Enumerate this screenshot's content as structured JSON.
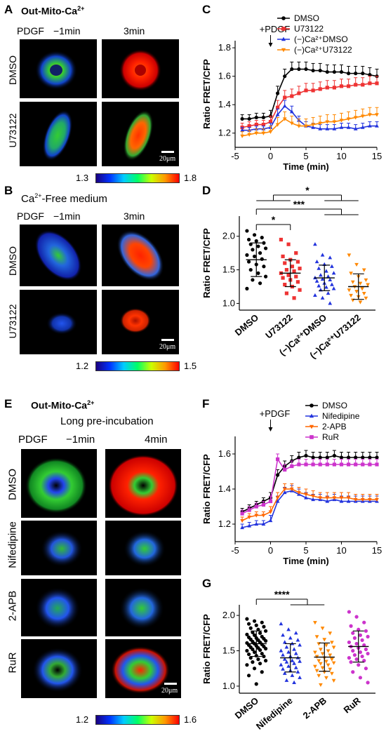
{
  "panels": {
    "A": {
      "label": "A",
      "title_main": "Out-Mito-Ca",
      "title_sup": "2+",
      "col_stim": "PDGF",
      "col1": "−1min",
      "col2": "3min",
      "rows": [
        "DMSO",
        "U73122"
      ],
      "scalebar": "20μm",
      "cbar_min": "1.3",
      "cbar_max": "1.8"
    },
    "B": {
      "label": "B",
      "title_pre": "Ca",
      "title_sup": "2+",
      "title_post": "-Free medium",
      "col_stim": "PDGF",
      "col1": "−1min",
      "col2": "3min",
      "rows": [
        "DMSO",
        "U73122"
      ],
      "scalebar": "20μm",
      "cbar_min": "1.2",
      "cbar_max": "1.5"
    },
    "E": {
      "label": "E",
      "title_main": "Out-Mito-Ca",
      "title_sup": "2+",
      "subtitle": "Long pre-incubation",
      "col_stim": "PDGF",
      "col1": "−1min",
      "col2": "4min",
      "rows": [
        "DMSO",
        "Nifedipine",
        "2-APB",
        "RuR"
      ],
      "scalebar": "20μm",
      "cbar_min": "1.2",
      "cbar_max": "1.6"
    },
    "C": {
      "label": "C"
    },
    "D": {
      "label": "D"
    },
    "F": {
      "label": "F"
    },
    "G": {
      "label": "G"
    }
  },
  "chart_data": [
    {
      "id": "C",
      "type": "line",
      "annotation": "+PDGF",
      "xlabel": "Time (min)",
      "ylabel": "Ratio FRET/CFP",
      "xlim": [
        -5,
        15
      ],
      "ylim": [
        1.1,
        1.85
      ],
      "xticks": [
        -5,
        0,
        5,
        10,
        15
      ],
      "yticks": [
        1.2,
        1.4,
        1.6,
        1.8
      ],
      "x": [
        -4,
        -3,
        -2,
        -1,
        0,
        1,
        2,
        3,
        4,
        5,
        6,
        7,
        8,
        9,
        10,
        11,
        12,
        13,
        14,
        15
      ],
      "legend_position": "top-right",
      "series": [
        {
          "name": "DMSO",
          "color": "#000000",
          "marker": "circle",
          "values": [
            1.3,
            1.3,
            1.31,
            1.31,
            1.32,
            1.48,
            1.6,
            1.65,
            1.65,
            1.65,
            1.64,
            1.64,
            1.63,
            1.63,
            1.63,
            1.62,
            1.62,
            1.62,
            1.61,
            1.6
          ],
          "errors": [
            0.03,
            0.03,
            0.03,
            0.03,
            0.04,
            0.05,
            0.05,
            0.05,
            0.05,
            0.05,
            0.05,
            0.05,
            0.05,
            0.05,
            0.05,
            0.05,
            0.05,
            0.05,
            0.05,
            0.05
          ]
        },
        {
          "name": "U73122",
          "color": "#ee3333",
          "marker": "square",
          "values": [
            1.24,
            1.25,
            1.26,
            1.26,
            1.28,
            1.38,
            1.45,
            1.46,
            1.48,
            1.5,
            1.5,
            1.51,
            1.52,
            1.52,
            1.53,
            1.53,
            1.54,
            1.54,
            1.55,
            1.55
          ],
          "errors": [
            0.03,
            0.03,
            0.03,
            0.03,
            0.04,
            0.05,
            0.05,
            0.05,
            0.05,
            0.05,
            0.05,
            0.05,
            0.05,
            0.05,
            0.05,
            0.05,
            0.05,
            0.05,
            0.05,
            0.05
          ]
        },
        {
          "name": "(−)Ca²⁺DMSO",
          "color": "#2233dd",
          "marker": "triangle",
          "values": [
            1.22,
            1.22,
            1.23,
            1.23,
            1.24,
            1.33,
            1.39,
            1.35,
            1.29,
            1.25,
            1.24,
            1.23,
            1.23,
            1.23,
            1.24,
            1.24,
            1.23,
            1.24,
            1.25,
            1.25
          ],
          "errors": [
            0.02,
            0.02,
            0.02,
            0.02,
            0.03,
            0.04,
            0.04,
            0.04,
            0.03,
            0.03,
            0.03,
            0.03,
            0.03,
            0.03,
            0.03,
            0.03,
            0.03,
            0.03,
            0.03,
            0.03
          ]
        },
        {
          "name": "(−)Ca²⁺U73122",
          "color": "#ff8800",
          "marker": "triangle-down",
          "values": [
            1.18,
            1.19,
            1.2,
            1.2,
            1.21,
            1.26,
            1.3,
            1.27,
            1.25,
            1.25,
            1.26,
            1.27,
            1.28,
            1.28,
            1.29,
            1.3,
            1.31,
            1.32,
            1.33,
            1.33
          ],
          "errors": [
            0.03,
            0.03,
            0.03,
            0.03,
            0.04,
            0.05,
            0.05,
            0.05,
            0.05,
            0.05,
            0.05,
            0.05,
            0.05,
            0.05,
            0.05,
            0.05,
            0.05,
            0.05,
            0.05,
            0.05
          ]
        }
      ]
    },
    {
      "id": "D",
      "type": "scatter",
      "ylabel": "Ratio FRET/CFP",
      "ylim": [
        0.9,
        2.3
      ],
      "yticks": [
        1.0,
        1.5,
        2.0
      ],
      "categories": [
        "DMSO",
        "U73122",
        "(−)Ca²⁺DMSO",
        "(−)Ca²⁺U73122"
      ],
      "groups": [
        {
          "color": "#000000",
          "marker": "circle",
          "mean": 1.65,
          "sd": 0.25,
          "points": [
            2.08,
            2.02,
            1.98,
            1.95,
            1.93,
            1.9,
            1.88,
            1.85,
            1.82,
            1.8,
            1.75,
            1.72,
            1.7,
            1.66,
            1.62,
            1.58,
            1.55,
            1.5,
            1.45,
            1.4,
            1.35,
            1.3,
            1.22
          ]
        },
        {
          "color": "#ee3333",
          "marker": "square",
          "mean": 1.45,
          "sd": 0.2,
          "points": [
            1.95,
            1.88,
            1.75,
            1.7,
            1.65,
            1.62,
            1.6,
            1.55,
            1.52,
            1.5,
            1.48,
            1.45,
            1.42,
            1.4,
            1.38,
            1.35,
            1.32,
            1.28,
            1.25,
            1.2,
            1.15,
            1.08
          ]
        },
        {
          "color": "#2233dd",
          "marker": "triangle",
          "mean": 1.38,
          "sd": 0.19,
          "points": [
            1.88,
            1.72,
            1.68,
            1.62,
            1.58,
            1.55,
            1.52,
            1.48,
            1.45,
            1.42,
            1.4,
            1.38,
            1.36,
            1.35,
            1.33,
            1.3,
            1.28,
            1.26,
            1.24,
            1.22,
            1.2,
            1.15,
            1.12,
            1.08,
            1.0
          ]
        },
        {
          "color": "#ff8800",
          "marker": "triangle-down",
          "mean": 1.25,
          "sd": 0.19,
          "points": [
            1.72,
            1.58,
            1.5,
            1.45,
            1.4,
            1.35,
            1.32,
            1.3,
            1.28,
            1.25,
            1.22,
            1.2,
            1.18,
            1.15,
            1.12,
            1.1,
            1.08,
            1.05,
            1.02
          ]
        }
      ],
      "significance": [
        {
          "from": 0,
          "to": 1,
          "label": "*"
        },
        {
          "from": 0,
          "to": "2-3",
          "label": "***"
        },
        {
          "from": "0-1",
          "to": "2-3",
          "label": "*"
        }
      ]
    },
    {
      "id": "F",
      "type": "line",
      "annotation": "+PDGF",
      "xlabel": "Time (min)",
      "ylabel": "Ratio FRET/CFP",
      "xlim": [
        -5,
        15
      ],
      "ylim": [
        1.1,
        1.7
      ],
      "xticks": [
        -5,
        0,
        5,
        10,
        15
      ],
      "yticks": [
        1.2,
        1.4,
        1.6
      ],
      "x": [
        -4,
        -3,
        -2,
        -1,
        0,
        1,
        2,
        3,
        4,
        5,
        6,
        7,
        8,
        9,
        10,
        11,
        12,
        13,
        14,
        15
      ],
      "legend_position": "top-right",
      "series": [
        {
          "name": "DMSO",
          "color": "#000000",
          "marker": "circle",
          "values": [
            1.27,
            1.29,
            1.31,
            1.33,
            1.35,
            1.48,
            1.53,
            1.56,
            1.58,
            1.59,
            1.58,
            1.58,
            1.58,
            1.59,
            1.58,
            1.58,
            1.58,
            1.58,
            1.58,
            1.58
          ],
          "errors": [
            0.02,
            0.02,
            0.02,
            0.02,
            0.03,
            0.03,
            0.03,
            0.03,
            0.03,
            0.03,
            0.03,
            0.03,
            0.03,
            0.03,
            0.03,
            0.03,
            0.03,
            0.03,
            0.03,
            0.03
          ]
        },
        {
          "name": "Nifedipine",
          "color": "#2233dd",
          "marker": "triangle",
          "values": [
            1.18,
            1.19,
            1.2,
            1.2,
            1.22,
            1.33,
            1.38,
            1.39,
            1.37,
            1.35,
            1.34,
            1.34,
            1.33,
            1.34,
            1.33,
            1.33,
            1.33,
            1.33,
            1.33,
            1.33
          ],
          "errors": [
            0.02,
            0.02,
            0.02,
            0.02,
            0.03,
            0.03,
            0.03,
            0.03,
            0.03,
            0.03,
            0.03,
            0.03,
            0.03,
            0.03,
            0.03,
            0.03,
            0.03,
            0.03,
            0.03,
            0.03
          ]
        },
        {
          "name": "2-APB",
          "color": "#ff6600",
          "marker": "triangle-down",
          "values": [
            1.22,
            1.24,
            1.25,
            1.25,
            1.27,
            1.35,
            1.4,
            1.4,
            1.38,
            1.37,
            1.36,
            1.35,
            1.35,
            1.35,
            1.35,
            1.35,
            1.34,
            1.34,
            1.34,
            1.34
          ],
          "errors": [
            0.02,
            0.02,
            0.02,
            0.02,
            0.03,
            0.03,
            0.03,
            0.03,
            0.03,
            0.03,
            0.03,
            0.03,
            0.03,
            0.03,
            0.03,
            0.03,
            0.03,
            0.03,
            0.03,
            0.03
          ]
        },
        {
          "name": "RuR",
          "color": "#cc33cc",
          "marker": "square",
          "values": [
            1.26,
            1.28,
            1.3,
            1.31,
            1.33,
            1.57,
            1.51,
            1.53,
            1.54,
            1.54,
            1.54,
            1.54,
            1.54,
            1.54,
            1.54,
            1.54,
            1.54,
            1.54,
            1.54,
            1.54
          ],
          "errors": [
            0.02,
            0.02,
            0.02,
            0.02,
            0.03,
            0.03,
            0.03,
            0.03,
            0.03,
            0.03,
            0.03,
            0.03,
            0.03,
            0.03,
            0.03,
            0.03,
            0.03,
            0.03,
            0.03,
            0.03
          ]
        }
      ]
    },
    {
      "id": "G",
      "type": "scatter",
      "ylabel": "Ratio FRET/CFP",
      "ylim": [
        0.9,
        2.15
      ],
      "yticks": [
        1.0,
        1.5,
        2.0
      ],
      "categories": [
        "DMSO",
        "Nifedipine",
        "2-APB",
        "RuR"
      ],
      "groups": [
        {
          "color": "#000000",
          "marker": "circle",
          "mean": 1.6,
          "sd": 0.18,
          "points": [
            1.95,
            1.92,
            1.9,
            1.88,
            1.86,
            1.84,
            1.82,
            1.8,
            1.78,
            1.76,
            1.75,
            1.73,
            1.72,
            1.7,
            1.69,
            1.68,
            1.67,
            1.66,
            1.65,
            1.64,
            1.63,
            1.62,
            1.61,
            1.6,
            1.59,
            1.58,
            1.57,
            1.56,
            1.55,
            1.54,
            1.53,
            1.52,
            1.51,
            1.5,
            1.48,
            1.46,
            1.45,
            1.43,
            1.42,
            1.4,
            1.38,
            1.36,
            1.34,
            1.32,
            1.3,
            1.25,
            1.2,
            1.15,
            1.03
          ]
        },
        {
          "color": "#2233dd",
          "marker": "triangle",
          "mean": 1.4,
          "sd": 0.2,
          "points": [
            1.88,
            1.8,
            1.75,
            1.72,
            1.68,
            1.65,
            1.62,
            1.6,
            1.58,
            1.55,
            1.52,
            1.5,
            1.48,
            1.46,
            1.44,
            1.42,
            1.4,
            1.38,
            1.36,
            1.35,
            1.34,
            1.32,
            1.3,
            1.28,
            1.26,
            1.24,
            1.22,
            1.2,
            1.18,
            1.15,
            1.12,
            1.08,
            1.05
          ]
        },
        {
          "color": "#ff8800",
          "marker": "triangle-down",
          "mean": 1.41,
          "sd": 0.2,
          "points": [
            1.9,
            1.82,
            1.75,
            1.7,
            1.66,
            1.62,
            1.6,
            1.58,
            1.55,
            1.52,
            1.5,
            1.48,
            1.46,
            1.44,
            1.42,
            1.4,
            1.38,
            1.36,
            1.35,
            1.33,
            1.32,
            1.3,
            1.28,
            1.26,
            1.24,
            1.22,
            1.2,
            1.18,
            1.15,
            1.12,
            1.08,
            1.02
          ]
        },
        {
          "color": "#cc33cc",
          "marker": "circle",
          "mean": 1.56,
          "sd": 0.22,
          "points": [
            2.05,
            1.98,
            1.9,
            1.85,
            1.8,
            1.78,
            1.75,
            1.72,
            1.7,
            1.68,
            1.65,
            1.62,
            1.6,
            1.58,
            1.56,
            1.54,
            1.52,
            1.5,
            1.48,
            1.46,
            1.44,
            1.42,
            1.4,
            1.38,
            1.36,
            1.34,
            1.3,
            1.25,
            1.2,
            1.12,
            1.05
          ]
        }
      ],
      "significance": [
        {
          "from": 0,
          "to": "1-2",
          "label": "****"
        }
      ]
    }
  ]
}
